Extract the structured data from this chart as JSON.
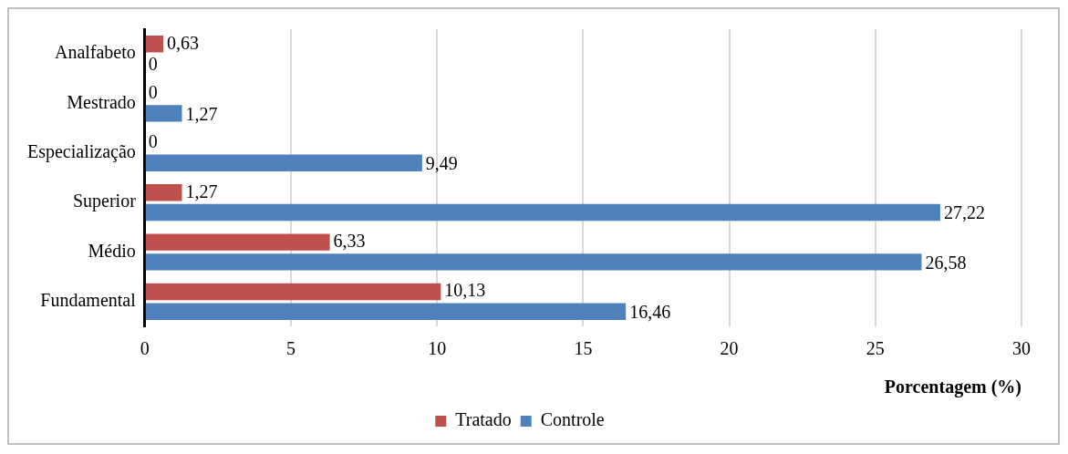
{
  "chart_data": {
    "type": "bar",
    "orientation": "horizontal",
    "xlabel": "Porcentagem (%)",
    "categories": [
      "Analfabeto",
      "Mestrado",
      "Especialização",
      "Superior",
      "Médio",
      "Fundamental"
    ],
    "series": [
      {
        "name": "Tratado",
        "color": "#c0504d",
        "values": [
          0.63,
          0,
          0,
          1.27,
          6.33,
          10.13
        ],
        "value_labels": [
          "0,63",
          "0",
          "0",
          "1,27",
          "6,33",
          "10,13"
        ]
      },
      {
        "name": "Controle",
        "color": "#4f81bd",
        "values": [
          0,
          1.27,
          9.49,
          27.22,
          26.58,
          16.46
        ],
        "value_labels": [
          "0",
          "1,27",
          "9,49",
          "27,22",
          "26,58",
          "16,46"
        ]
      }
    ],
    "xlim": [
      0,
      30
    ],
    "xticks": [
      0,
      5,
      10,
      15,
      20,
      25,
      30
    ],
    "grid": "x",
    "legend": "bottom"
  }
}
